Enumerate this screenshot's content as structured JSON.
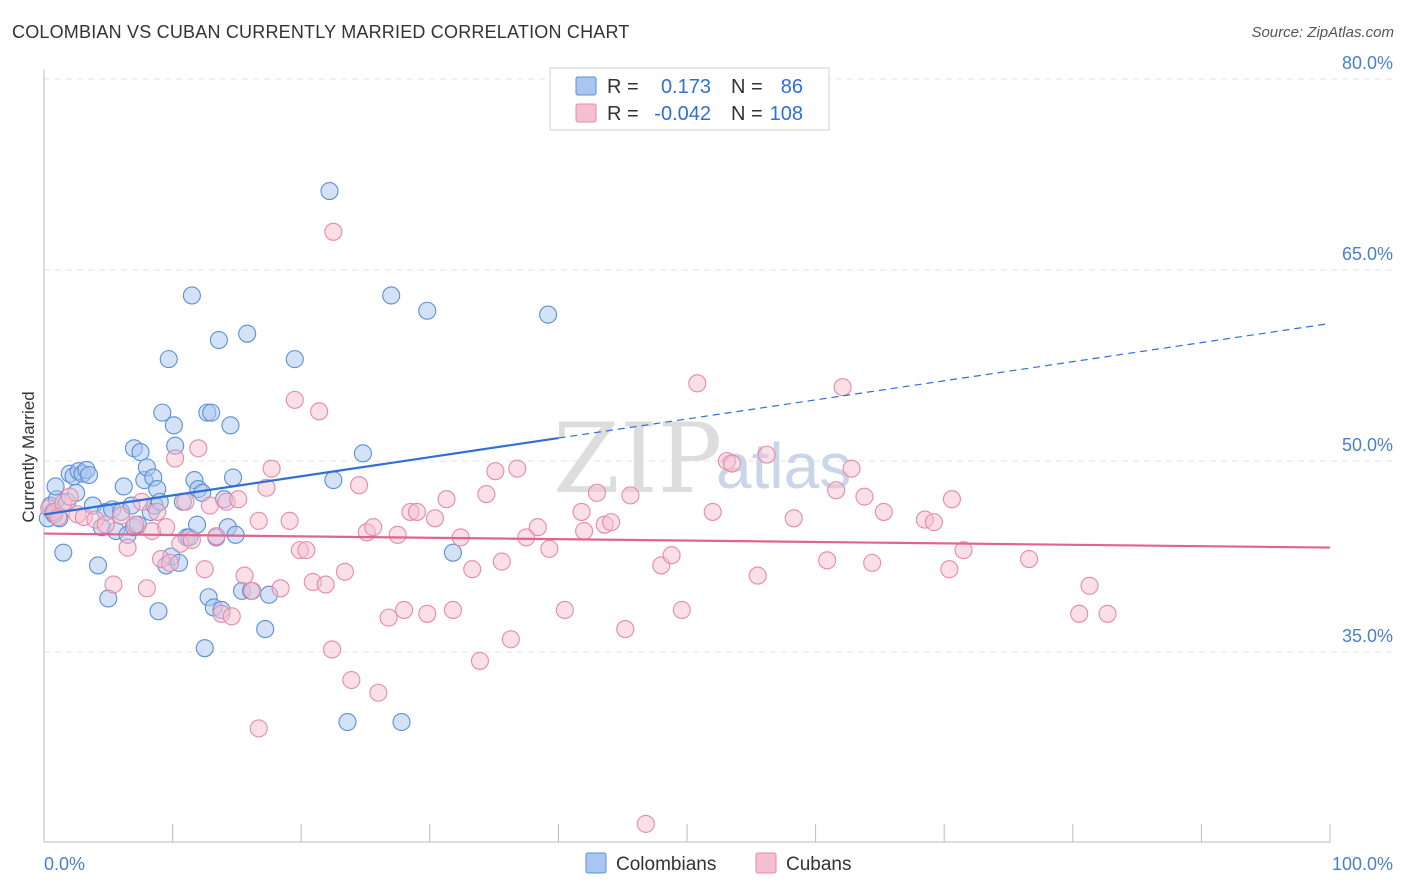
{
  "header": {
    "title": "COLOMBIAN VS CUBAN CURRENTLY MARRIED CORRELATION CHART",
    "source": "Source: ZipAtlas.com"
  },
  "watermark": {
    "zip": "ZIP",
    "atlas": "atlas"
  },
  "colors": {
    "colombian_fill": "#a9c6f0",
    "colombian_stroke": "#5b8fd6",
    "colombian_line": "#2f6fd6",
    "cuban_fill": "#f6bfd0",
    "cuban_stroke": "#e68aa8",
    "cuban_line": "#e0648f",
    "grid": "#e3e3e3",
    "axis_label": "#4a7fcc"
  },
  "legend": {
    "rows": [
      {
        "r_label": "R =",
        "r_value": "0.173",
        "n_label": "N =",
        "n_value": "86"
      },
      {
        "r_label": "R =",
        "r_value": "-0.042",
        "n_label": "N =",
        "n_value": "108"
      }
    ]
  },
  "chart_data": {
    "type": "scatter",
    "title": "COLOMBIAN VS CUBAN CURRENTLY MARRIED CORRELATION CHART",
    "xlabel": "",
    "ylabel": "Currently Married",
    "xlim": [
      0,
      100
    ],
    "ylim": [
      20,
      82
    ],
    "x_tick_labels": [
      "0.0%",
      "100.0%"
    ],
    "y_ticks": [
      35,
      50,
      65,
      80
    ],
    "y_tick_labels": [
      "35.0%",
      "50.0%",
      "65.0%",
      "80.0%"
    ],
    "grid": true,
    "legend_position": "top-center",
    "series": [
      {
        "name": "Colombians",
        "r": 0.173,
        "n": 86,
        "trend": {
          "x0": 0,
          "y0": 45.8,
          "x1": 40,
          "y1": 51.8,
          "dashed_to_x": 100,
          "dashed_to_y": 60.8
        },
        "points": [
          [
            0.3,
            45.5
          ],
          [
            0.5,
            46.5
          ],
          [
            0.7,
            46.0
          ],
          [
            0.8,
            45.8
          ],
          [
            1.0,
            47.0
          ],
          [
            1.2,
            45.5
          ],
          [
            0.9,
            48.0
          ],
          [
            1.5,
            42.8
          ],
          [
            1.8,
            46.8
          ],
          [
            2.0,
            49.0
          ],
          [
            2.3,
            48.8
          ],
          [
            2.5,
            47.5
          ],
          [
            2.7,
            49.2
          ],
          [
            3.0,
            49.0
          ],
          [
            3.3,
            49.3
          ],
          [
            3.5,
            48.9
          ],
          [
            3.8,
            46.5
          ],
          [
            4.2,
            41.8
          ],
          [
            4.5,
            44.8
          ],
          [
            4.8,
            46.0
          ],
          [
            5.0,
            39.2
          ],
          [
            5.3,
            46.2
          ],
          [
            5.6,
            44.5
          ],
          [
            6.0,
            46.0
          ],
          [
            6.2,
            48.0
          ],
          [
            6.5,
            44.2
          ],
          [
            6.8,
            46.5
          ],
          [
            7.0,
            44.8
          ],
          [
            7.3,
            45.0
          ],
          [
            7.0,
            51.0
          ],
          [
            7.5,
            50.7
          ],
          [
            7.8,
            48.5
          ],
          [
            8.0,
            49.5
          ],
          [
            8.3,
            46.0
          ],
          [
            8.5,
            48.7
          ],
          [
            8.8,
            47.8
          ],
          [
            8.6,
            46.5
          ],
          [
            8.9,
            38.2
          ],
          [
            9.0,
            46.8
          ],
          [
            9.2,
            53.8
          ],
          [
            9.5,
            41.8
          ],
          [
            9.7,
            58.0
          ],
          [
            9.9,
            42.5
          ],
          [
            10.1,
            52.8
          ],
          [
            10.2,
            51.2
          ],
          [
            10.5,
            42.0
          ],
          [
            10.8,
            46.8
          ],
          [
            11.1,
            44.0
          ],
          [
            11.3,
            44.0
          ],
          [
            11.5,
            63.0
          ],
          [
            11.7,
            48.5
          ],
          [
            11.9,
            45.0
          ],
          [
            12.0,
            47.8
          ],
          [
            12.3,
            47.5
          ],
          [
            12.5,
            35.3
          ],
          [
            12.7,
            53.8
          ],
          [
            12.8,
            39.3
          ],
          [
            13.0,
            53.8
          ],
          [
            13.2,
            38.5
          ],
          [
            13.4,
            44.0
          ],
          [
            13.6,
            59.5
          ],
          [
            13.8,
            38.3
          ],
          [
            14.0,
            47.0
          ],
          [
            14.3,
            44.8
          ],
          [
            14.5,
            52.8
          ],
          [
            14.7,
            48.7
          ],
          [
            14.9,
            44.2
          ],
          [
            15.4,
            39.8
          ],
          [
            15.8,
            60.0
          ],
          [
            16.1,
            39.8
          ],
          [
            17.2,
            36.8
          ],
          [
            17.5,
            39.5
          ],
          [
            19.5,
            58.0
          ],
          [
            22.2,
            71.2
          ],
          [
            22.5,
            48.5
          ],
          [
            23.6,
            29.5
          ],
          [
            24.8,
            50.6
          ],
          [
            27.0,
            63.0
          ],
          [
            27.8,
            29.5
          ],
          [
            29.8,
            61.8
          ],
          [
            31.8,
            42.8
          ],
          [
            39.2,
            61.5
          ]
        ]
      },
      {
        "name": "Cubans",
        "r": -0.042,
        "n": 108,
        "trend": {
          "x0": 0,
          "y0": 44.3,
          "x1": 100,
          "y1": 43.2
        },
        "points": [
          [
            0.4,
            46.3
          ],
          [
            0.8,
            46.0
          ],
          [
            1.1,
            45.6
          ],
          [
            1.5,
            46.7
          ],
          [
            2.0,
            47.2
          ],
          [
            2.6,
            45.8
          ],
          [
            3.1,
            45.6
          ],
          [
            4.0,
            45.4
          ],
          [
            4.8,
            45.0
          ],
          [
            5.4,
            40.3
          ],
          [
            6.0,
            45.7
          ],
          [
            6.5,
            43.2
          ],
          [
            7.1,
            45.0
          ],
          [
            7.6,
            46.8
          ],
          [
            8.0,
            40.0
          ],
          [
            8.4,
            44.5
          ],
          [
            8.8,
            46.0
          ],
          [
            9.1,
            42.3
          ],
          [
            9.5,
            44.8
          ],
          [
            9.8,
            42.0
          ],
          [
            10.2,
            50.2
          ],
          [
            10.6,
            43.5
          ],
          [
            11.0,
            46.8
          ],
          [
            11.5,
            43.8
          ],
          [
            12.0,
            51.0
          ],
          [
            12.5,
            41.5
          ],
          [
            12.9,
            46.5
          ],
          [
            13.4,
            44.1
          ],
          [
            13.8,
            38.0
          ],
          [
            14.2,
            46.8
          ],
          [
            14.6,
            37.8
          ],
          [
            15.1,
            47.0
          ],
          [
            15.6,
            41.0
          ],
          [
            16.2,
            39.8
          ],
          [
            16.7,
            45.3
          ],
          [
            16.7,
            29.0
          ],
          [
            17.3,
            47.9
          ],
          [
            17.7,
            49.4
          ],
          [
            18.4,
            40.0
          ],
          [
            19.1,
            45.3
          ],
          [
            19.5,
            54.8
          ],
          [
            19.9,
            43.0
          ],
          [
            20.4,
            43.0
          ],
          [
            20.9,
            40.5
          ],
          [
            21.4,
            53.9
          ],
          [
            21.9,
            40.3
          ],
          [
            22.4,
            35.2
          ],
          [
            22.5,
            68.0
          ],
          [
            23.4,
            41.3
          ],
          [
            23.9,
            32.8
          ],
          [
            24.5,
            48.1
          ],
          [
            25.1,
            44.4
          ],
          [
            25.6,
            44.8
          ],
          [
            26.0,
            31.8
          ],
          [
            26.8,
            37.7
          ],
          [
            27.5,
            44.2
          ],
          [
            28.0,
            38.3
          ],
          [
            28.5,
            46.0
          ],
          [
            29.0,
            46.0
          ],
          [
            29.8,
            38.0
          ],
          [
            30.4,
            45.5
          ],
          [
            31.3,
            47.0
          ],
          [
            31.8,
            38.3
          ],
          [
            32.4,
            44.0
          ],
          [
            33.3,
            41.5
          ],
          [
            33.9,
            34.3
          ],
          [
            34.4,
            47.4
          ],
          [
            35.1,
            49.2
          ],
          [
            35.6,
            42.1
          ],
          [
            36.3,
            36.0
          ],
          [
            36.8,
            49.4
          ],
          [
            37.5,
            44.0
          ],
          [
            38.4,
            44.8
          ],
          [
            39.3,
            43.1
          ],
          [
            40.5,
            38.3
          ],
          [
            41.8,
            46.0
          ],
          [
            42.0,
            44.5
          ],
          [
            43.0,
            47.5
          ],
          [
            43.6,
            45.0
          ],
          [
            44.1,
            45.2
          ],
          [
            45.2,
            36.8
          ],
          [
            45.6,
            47.3
          ],
          [
            46.8,
            21.5
          ],
          [
            48.0,
            41.8
          ],
          [
            48.8,
            42.6
          ],
          [
            49.6,
            38.3
          ],
          [
            50.8,
            56.1
          ],
          [
            52.0,
            46.0
          ],
          [
            53.1,
            50.0
          ],
          [
            53.5,
            49.8
          ],
          [
            55.5,
            41.0
          ],
          [
            56.2,
            50.5
          ],
          [
            58.3,
            45.5
          ],
          [
            60.9,
            42.2
          ],
          [
            61.6,
            47.7
          ],
          [
            62.1,
            55.8
          ],
          [
            62.8,
            49.4
          ],
          [
            63.8,
            47.2
          ],
          [
            64.4,
            42.0
          ],
          [
            65.3,
            46.0
          ],
          [
            68.5,
            45.4
          ],
          [
            69.2,
            45.2
          ],
          [
            70.4,
            41.5
          ],
          [
            70.6,
            47.0
          ],
          [
            71.5,
            43.0
          ],
          [
            76.6,
            42.3
          ],
          [
            80.5,
            38.0
          ],
          [
            81.3,
            40.2
          ],
          [
            82.7,
            38.0
          ]
        ]
      }
    ]
  },
  "bottom_legend": {
    "items": [
      "Colombians",
      "Cubans"
    ]
  }
}
